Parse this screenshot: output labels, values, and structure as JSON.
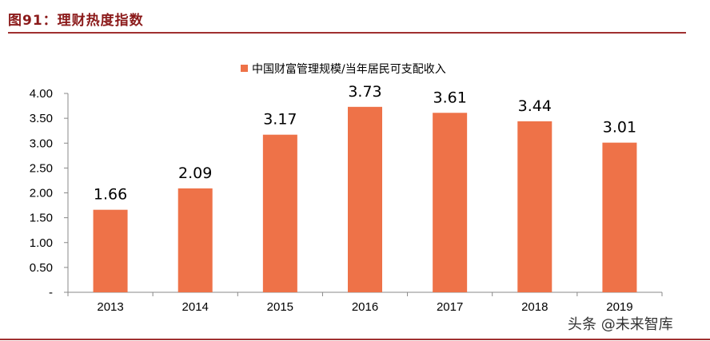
{
  "header": {
    "title": "图91：理财热度指数"
  },
  "watermark": {
    "text": "头条 @未来智库"
  },
  "colors": {
    "bar": "#ee7248",
    "title": "#8b1a1a",
    "rule": "#a03030",
    "axis": "#888888"
  },
  "chart_data": {
    "type": "bar",
    "categories": [
      "2013",
      "2014",
      "2015",
      "2016",
      "2017",
      "2018",
      "2019"
    ],
    "series": [
      {
        "name": "中国财富管理规模/当年居民可支配收入",
        "values": [
          1.66,
          2.09,
          3.17,
          3.73,
          3.61,
          3.44,
          3.01
        ]
      }
    ],
    "data_labels": [
      "1.66",
      "2.09",
      "3.17",
      "3.73",
      "3.61",
      "3.44",
      "3.01"
    ],
    "yticks": [
      0,
      0.5,
      1.0,
      1.5,
      2.0,
      2.5,
      3.0,
      3.5,
      4.0
    ],
    "ytick_labels": [
      "-",
      "0.50",
      "1.00",
      "1.50",
      "2.00",
      "2.50",
      "3.00",
      "3.50",
      "4.00"
    ],
    "ylim": [
      0,
      4
    ],
    "title": "",
    "xlabel": "",
    "ylabel": "",
    "grid": false,
    "legend_position": "top-center"
  }
}
